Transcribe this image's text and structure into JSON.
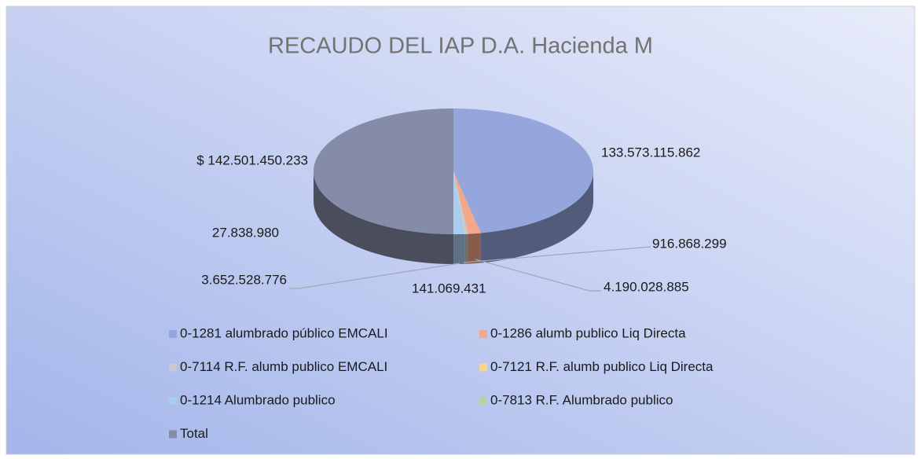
{
  "chart_data": {
    "type": "pie",
    "title": "RECAUDO DEL IAP D.A. Hacienda M",
    "categories": [
      "0-1281 alumbrado público EMCALI",
      "0-1286 alumb publico Liq Directa",
      "0-7114 R.F. alumb publico EMCALI",
      "0-7121 R.F. alumb publico Liq Directa",
      "0-1214 Alumbrado publico",
      "0-7813 R.F. Alumbrado publico",
      "Total"
    ],
    "values": [
      133573115862,
      4190028885,
      916868299,
      141069431,
      3652528776,
      27838980,
      142501450233
    ],
    "value_labels": [
      "133.573.115.862",
      "4.190.028.885",
      "916.868.299",
      "141.069.431",
      "3.652.528.776",
      "27.838.980",
      "$ 142.501.450.233"
    ],
    "colors": [
      "#95a6dc",
      "#f4a88a",
      "#c9c9cc",
      "#f8d58a",
      "#a9cdee",
      "#b3d3a0",
      "#858ca8"
    ],
    "legend": "bottom"
  }
}
